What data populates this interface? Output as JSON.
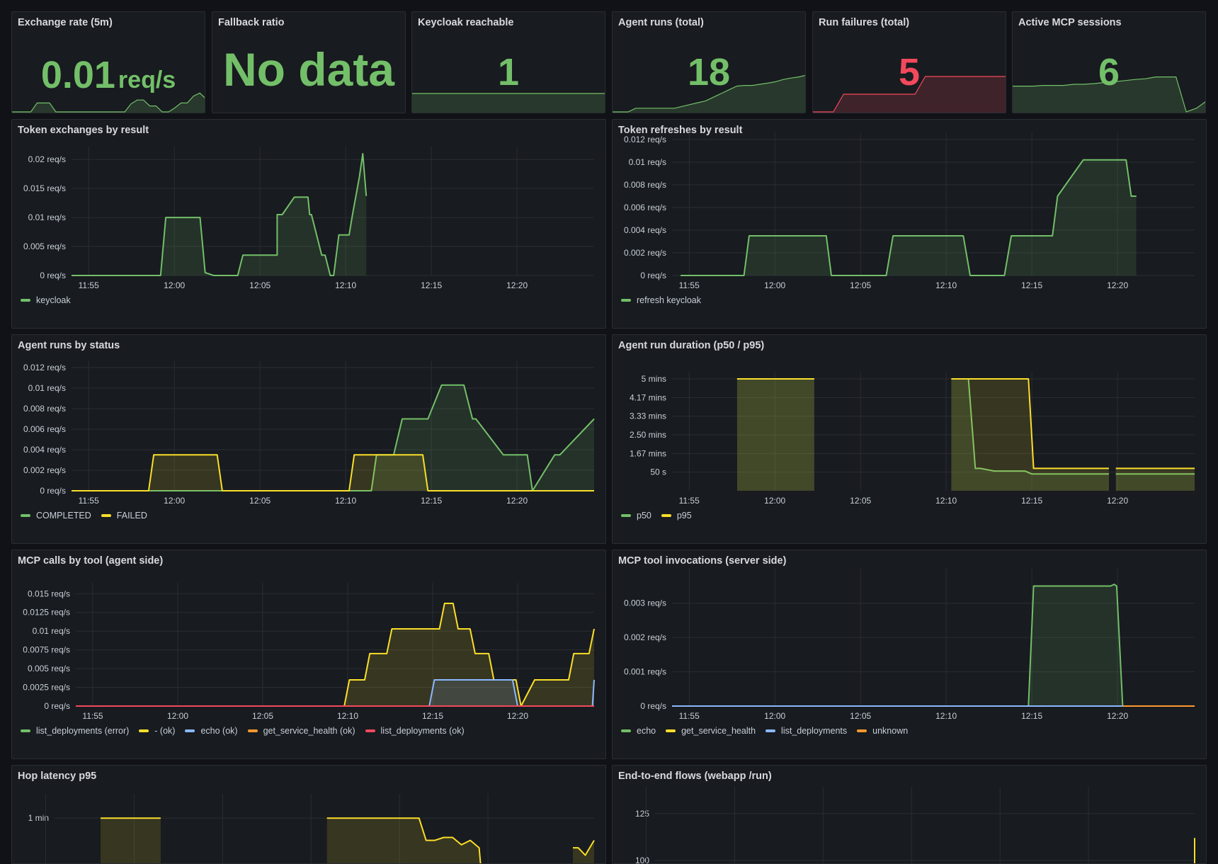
{
  "colors": {
    "green": "#73bf69",
    "yellow": "#fade2a",
    "blue": "#8ab8ff",
    "orange": "#ff9830",
    "red": "#f2495c",
    "background": "#111217",
    "panel": "#181b1f"
  },
  "stats": [
    {
      "title": "Exchange rate (5m)",
      "value": "0.01",
      "unit": "req/s",
      "color": "green",
      "sparkline": [
        0,
        0,
        0,
        0,
        0.45,
        0.45,
        0.45,
        0,
        0,
        0,
        0,
        0,
        0,
        0,
        0,
        0,
        0,
        0,
        0,
        0.4,
        0.6,
        0.6,
        0.3,
        0.3,
        0,
        0,
        0.2,
        0.45,
        0.45,
        0.8,
        0.95,
        0.65
      ]
    },
    {
      "title": "Fallback ratio",
      "value": "No data",
      "unit": "",
      "color": "green"
    },
    {
      "title": "Keycloak reachable",
      "value": "1",
      "unit": "",
      "color": "green",
      "sparkline": [
        1,
        1,
        1,
        1,
        1,
        1,
        1,
        1,
        1,
        1
      ]
    },
    {
      "title": "Agent runs (total)",
      "value": "18",
      "unit": "",
      "color": "green",
      "sparkline": [
        0,
        0,
        0,
        0.1,
        0.1,
        0.1,
        0.1,
        0.1,
        0.1,
        0.15,
        0.2,
        0.25,
        0.3,
        0.4,
        0.5,
        0.6,
        0.7,
        0.72,
        0.72,
        0.75,
        0.78,
        0.82,
        0.88,
        0.92,
        0.95,
        1.0
      ]
    },
    {
      "title": "Run failures (total)",
      "value": "5",
      "unit": "",
      "color": "red",
      "sparkline": [
        0,
        0,
        0,
        0.5,
        0.5,
        0.5,
        0.5,
        0.5,
        0.5,
        0.5,
        0.5,
        1,
        1,
        1,
        1,
        1,
        1,
        1,
        1,
        1
      ]
    },
    {
      "title": "Active MCP sessions",
      "value": "6",
      "unit": "",
      "color": "green",
      "sparkline": [
        0.7,
        0.7,
        0.7,
        0.72,
        0.72,
        0.72,
        0.75,
        0.75,
        0.77,
        0.8,
        0.82,
        0.85,
        0.88,
        0.9,
        0.95,
        0.95,
        0.95,
        0,
        0.1,
        0.3
      ]
    }
  ],
  "panels": [
    {
      "id": "token-exchanges",
      "title": "Token exchanges by result",
      "chart_data": {
        "type": "line",
        "x_ticks": [
          "11:55",
          "12:00",
          "12:05",
          "12:10",
          "12:15",
          "12:20"
        ],
        "y_ticks": [
          "0 req/s",
          "0.005 req/s",
          "0.01 req/s",
          "0.015 req/s",
          "0.02 req/s"
        ],
        "ylim": [
          0,
          0.021
        ],
        "series": [
          {
            "name": "keycloak",
            "color": "green",
            "fill": true,
            "x": [
              -1,
              0,
              0.3,
              0.7,
              1.3,
              2,
              2.5,
              3.1,
              3.25,
              3.6,
              4,
              4.2,
              4.5,
              5.5,
              5.7,
              6,
              6.5,
              6.8,
              7.3,
              7.55,
              7.7,
              8,
              8.5,
              8.7,
              9,
              9.4,
              9.7,
              10,
              11,
              11,
              11.3,
              12,
              12.8,
              12.9,
              13,
              13.6,
              13.8,
              14.1,
              14.3,
              14.6,
              15.2,
              15.4,
              15.8,
              16.0,
              16.2
            ],
            "y": [
              0,
              0,
              0,
              0,
              0,
              0,
              0,
              0,
              0,
              0,
              0,
              0,
              0.01,
              0.01,
              0.01,
              0.01,
              0.01,
              0.0005,
              0,
              0,
              0,
              0,
              0,
              0,
              0.0035,
              0.0035,
              0.0035,
              0.0035,
              0.0035,
              0.0105,
              0.0105,
              0.0135,
              0.0135,
              0.0105,
              0.0105,
              0.0035,
              0.0035,
              0,
              0,
              0.007,
              0.007,
              0.0105,
              0.017,
              0.021,
              0.0137
            ]
          }
        ]
      },
      "legend": [
        {
          "name": "keycloak",
          "color": "green"
        }
      ]
    },
    {
      "id": "token-refreshes",
      "title": "Token refreshes by result",
      "chart_data": {
        "type": "line",
        "x_ticks": [
          "11:55",
          "12:00",
          "12:05",
          "12:10",
          "12:15",
          "12:20"
        ],
        "y_ticks": [
          "0 req/s",
          "0.002 req/s",
          "0.004 req/s",
          "0.006 req/s",
          "0.008 req/s",
          "0.01 req/s",
          "0.012 req/s"
        ],
        "ylim": [
          0,
          0.012
        ],
        "series": [
          {
            "name": "refresh keycloak",
            "color": "green",
            "fill": true,
            "x": [
              -0.5,
              3.2,
              3.5,
              8,
              8.3,
              11.5,
              11.9,
              16,
              16.4,
              18.4,
              18.8,
              21.2,
              21.5,
              23,
              23.3,
              23.7,
              25.5,
              25.8,
              26.1
            ],
            "y": [
              0,
              0,
              0.0035,
              0.0035,
              0,
              0,
              0.0035,
              0.0035,
              0,
              0,
              0.0035,
              0.0035,
              0.007,
              0.0102,
              0.0102,
              0.0102,
              0.0102,
              0.007,
              0.007
            ]
          }
        ]
      },
      "legend": [
        {
          "name": "refresh keycloak",
          "color": "green"
        }
      ]
    },
    {
      "id": "agent-runs",
      "title": "Agent runs by status",
      "chart_data": {
        "type": "line",
        "x_ticks": [
          "11:55",
          "12:00",
          "12:05",
          "12:10",
          "12:15",
          "12:20"
        ],
        "y_ticks": [
          "0 req/s",
          "0.002 req/s",
          "0.004 req/s",
          "0.006 req/s",
          "0.008 req/s",
          "0.01 req/s",
          "0.012 req/s"
        ],
        "ylim": [
          0,
          0.012
        ],
        "series": [
          {
            "name": "COMPLETED",
            "color": "green",
            "fill": true,
            "x": [
              -1,
              16.5,
              16.8,
              17.8,
              18.3,
              19.8,
              20.6,
              21.9,
              22.4,
              22.6,
              24.2,
              25.6,
              25.9,
              27.2,
              27.5,
              29.6,
              30
            ],
            "y": [
              0,
              0,
              0.0035,
              0.0035,
              0.007,
              0.007,
              0.0103,
              0.0103,
              0.007,
              0.007,
              0.0035,
              0.0035,
              0,
              0.0035,
              0.0035,
              0.007,
              0.007
            ]
          },
          {
            "name": "FAILED",
            "color": "yellow",
            "fill": true,
            "x": [
              -1,
              3.5,
              3.8,
              7.5,
              7.8,
              15.2,
              15.5,
              19.5,
              19.8,
              30
            ],
            "y": [
              0,
              0,
              0.0035,
              0.0035,
              0,
              0,
              0.0035,
              0.0035,
              0,
              0
            ]
          }
        ]
      },
      "legend": [
        {
          "name": "COMPLETED",
          "color": "green"
        },
        {
          "name": "FAILED",
          "color": "yellow"
        }
      ]
    },
    {
      "id": "agent-duration",
      "title": "Agent run duration (p50 / p95)",
      "chart_data": {
        "type": "area",
        "x_ticks": [
          "11:55",
          "12:00",
          "12:05",
          "12:10",
          "12:15",
          "12:20"
        ],
        "y_ticks": [
          "50 s",
          "1.67 mins",
          "2.50 mins",
          "3.33 mins",
          "4.17 mins",
          "5 mins"
        ],
        "ylim": [
          0,
          300
        ],
        "series": [
          {
            "name": "p50",
            "color": "green",
            "fill": true,
            "segments": [
              {
                "x": [
                  2.8,
                  7.3
                ],
                "y": [
                  300,
                  300
                ]
              },
              {
                "x": [
                  15.3,
                  16.3,
                  16.7,
                  17.0,
                  17.8,
                  19.6,
                  20.0,
                  24.5
                ],
                "y": [
                  300,
                  300,
                  60,
                  60,
                  53,
                  53,
                  45,
                  45
                ]
              },
              {
                "x": [
                  24.9,
                  29.6
                ],
                "y": [
                  45,
                  45
                ]
              }
            ]
          },
          {
            "name": "p95",
            "color": "yellow",
            "fill": true,
            "segments": [
              {
                "x": [
                  2.8,
                  7.3
                ],
                "y": [
                  300,
                  300
                ]
              },
              {
                "x": [
                  15.3,
                  19.8,
                  20.1,
                  24.5
                ],
                "y": [
                  300,
                  300,
                  60,
                  60
                ]
              },
              {
                "x": [
                  24.9,
                  29.6
                ],
                "y": [
                  60,
                  60
                ]
              }
            ]
          }
        ]
      },
      "legend": [
        {
          "name": "p50",
          "color": "green"
        },
        {
          "name": "p95",
          "color": "yellow"
        }
      ]
    },
    {
      "id": "mcp-calls",
      "title": "MCP calls by tool (agent side)",
      "chart_data": {
        "type": "line",
        "x_ticks": [
          "11:55",
          "12:00",
          "12:05",
          "12:10",
          "12:15",
          "12:20"
        ],
        "y_ticks": [
          "0 req/s",
          "0.0025 req/s",
          "0.005 req/s",
          "0.0075 req/s",
          "0.01 req/s",
          "0.0125 req/s",
          "0.015 req/s"
        ],
        "ylim": [
          0,
          0.0155
        ],
        "series": [
          {
            "name": "list_deployments (error)",
            "color": "green",
            "fill": false,
            "x": [
              -1,
              30
            ],
            "y": [
              0,
              0
            ]
          },
          {
            "name": "- (ok)",
            "color": "yellow",
            "fill": true,
            "x": [
              -1,
              14.8,
              15.1,
              16,
              16.3,
              17.3,
              17.6,
              18.7,
              19,
              20.4,
              20.7,
              21.2,
              21.5,
              22.2,
              22.5,
              23.3,
              23.6,
              24.9,
              25.2,
              26,
              26.3,
              27.1,
              27.3,
              28,
              28.3,
              29.2,
              29.5,
              30
            ],
            "y": [
              0,
              0,
              0.0035,
              0.0035,
              0.007,
              0.007,
              0.0103,
              0.0103,
              0.0103,
              0.0103,
              0.0137,
              0.0137,
              0.0103,
              0.0103,
              0.007,
              0.007,
              0.0035,
              0.0035,
              0,
              0.0035,
              0.0035,
              0.0035,
              0.0035,
              0.0035,
              0.007,
              0.007,
              0.0103,
              0.0103
            ]
          },
          {
            "name": "echo (ok)",
            "color": "blue",
            "fill": true,
            "x": [
              -1,
              19.8,
              20.1,
              24.7,
              25,
              29.4,
              29.7,
              30
            ],
            "y": [
              0,
              0,
              0.0035,
              0.0035,
              0,
              0,
              0.0035,
              0.0035
            ]
          },
          {
            "name": "get_service_health (ok)",
            "color": "orange",
            "fill": false,
            "x": [
              -1,
              30
            ],
            "y": [
              0,
              0
            ]
          },
          {
            "name": "list_deployments (ok)",
            "color": "red",
            "fill": false,
            "x": [
              -1,
              30
            ],
            "y": [
              0,
              0
            ]
          }
        ]
      },
      "legend": [
        {
          "name": "list_deployments (error)",
          "color": "green"
        },
        {
          "name": "- (ok)",
          "color": "yellow"
        },
        {
          "name": "echo (ok)",
          "color": "blue"
        },
        {
          "name": "get_service_health (ok)",
          "color": "orange"
        },
        {
          "name": "list_deployments (ok)",
          "color": "red"
        }
      ]
    },
    {
      "id": "mcp-invocations",
      "title": "MCP tool invocations (server side)",
      "chart_data": {
        "type": "line",
        "x_ticks": [
          "11:55",
          "12:00",
          "12:05",
          "12:10",
          "12:15",
          "12:20"
        ],
        "y_ticks": [
          "0 req/s",
          "0.001 req/s",
          "0.002 req/s",
          "0.003 req/s"
        ],
        "ylim": [
          0,
          0.0038
        ],
        "series": [
          {
            "name": "echo",
            "color": "green",
            "fill": true,
            "x": [
              -1,
              19.8,
              20.1,
              24.6,
              24.8,
              24.95,
              25.3,
              30
            ],
            "y": [
              0,
              0,
              0.0035,
              0.0035,
              0.00355,
              0.0035,
              0,
              0
            ]
          },
          {
            "name": "get_service_health",
            "color": "yellow",
            "fill": false,
            "x": [
              -1,
              30
            ],
            "y": [
              0,
              0
            ]
          },
          {
            "name": "list_deployments",
            "color": "blue",
            "fill": false,
            "x": [
              -1,
              25.3
            ],
            "y": [
              0,
              0
            ]
          },
          {
            "name": "unknown",
            "color": "orange",
            "fill": false,
            "x": [
              25.3,
              30
            ],
            "y": [
              0,
              0
            ]
          }
        ]
      },
      "legend": [
        {
          "name": "echo",
          "color": "green"
        },
        {
          "name": "get_service_health",
          "color": "yellow"
        },
        {
          "name": "list_deployments",
          "color": "blue"
        },
        {
          "name": "unknown",
          "color": "orange"
        }
      ]
    },
    {
      "id": "hop-latency",
      "title": "Hop latency p95",
      "chart_data": {
        "type": "line",
        "y_ticks": [
          "1 min"
        ],
        "series": [
          {
            "name": "",
            "color": "yellow",
            "fill": true,
            "segments": [
              {
                "x": [
                  1.6,
                  5.0
                ],
                "y": [
                  60,
                  60
                ]
              },
              {
                "x": [
                  14.4,
                  19.6,
                  20.0,
                  20.5,
                  21.0,
                  21.5,
                  22.0,
                  22.5,
                  23.0,
                  23.3
                ],
                "y": [
                  60,
                  60,
                  45,
                  45,
                  47,
                  47,
                  42,
                  45,
                  40,
                  0
                ]
              },
              {
                "x": [
                  28.3,
                  28.6,
                  29.0,
                  29.5,
                  29.8
                ],
                "y": [
                  40,
                  40,
                  35,
                  45,
                  45
                ]
              }
            ]
          }
        ]
      }
    },
    {
      "id": "e2e-flows",
      "title": "End-to-end flows (webapp /run)",
      "chart_data": {
        "type": "line",
        "y_ticks": [
          "100",
          "125"
        ],
        "series": [
          {
            "name": "",
            "color": "yellow",
            "fill": false,
            "x": [
              29.6,
              29.8
            ],
            "y": [
              90,
              112
            ]
          }
        ]
      }
    }
  ]
}
